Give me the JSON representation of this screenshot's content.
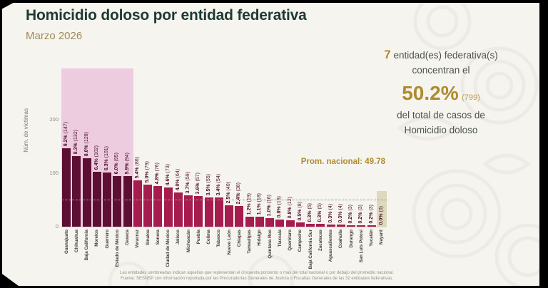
{
  "header": {
    "title": "Homicidio doloso por entidad federativa",
    "subtitle": "Marzo 2026"
  },
  "summary": {
    "count": "7",
    "entities_text": "entidad(es) federativa(s)",
    "concentrate_text": "concentran el",
    "percent": "50.2%",
    "percent_cases": "(799)",
    "total_text_line1": "del total de casos de",
    "total_text_line2": "Homicidio doloso"
  },
  "national_average": {
    "label": "Prom. nacional: 49.78",
    "value": 49.78
  },
  "chart_data": {
    "type": "bar",
    "title": "Homicidio doloso por entidad federativa",
    "xlabel": "",
    "ylabel": "Núm. de víctimas",
    "yticks": [
      0,
      100,
      200
    ],
    "ylim": [
      0,
      296
    ],
    "grid": false,
    "legend": false,
    "national_average": 49.78,
    "top_highlight_count": 7,
    "zero_highlight_state": "Nayarit",
    "bars": [
      {
        "state": "Guanajuato",
        "victims": 147,
        "pct": "9.2%"
      },
      {
        "state": "Chihuahua",
        "victims": 132,
        "pct": "8.3%"
      },
      {
        "state": "Baja California",
        "victims": 128,
        "pct": "8.0%"
      },
      {
        "state": "Morelos",
        "victims": 102,
        "pct": "6.4%"
      },
      {
        "state": "Guerrero",
        "victims": 101,
        "pct": "6.3%"
      },
      {
        "state": "Estado de México",
        "victims": 95,
        "pct": "6.0%"
      },
      {
        "state": "Oaxaca",
        "victims": 94,
        "pct": "5.9%"
      },
      {
        "state": "Veracruz",
        "victims": 86,
        "pct": "5.4%"
      },
      {
        "state": "Sinaloa",
        "victims": 79,
        "pct": "5.0%"
      },
      {
        "state": "Sonora",
        "victims": 76,
        "pct": "4.8%"
      },
      {
        "state": "Ciudad de México",
        "victims": 73,
        "pct": "4.6%"
      },
      {
        "state": "Jalisco",
        "victims": 64,
        "pct": "4.0%"
      },
      {
        "state": "Michoacán",
        "victims": 59,
        "pct": "3.7%"
      },
      {
        "state": "Puebla",
        "victims": 57,
        "pct": "3.6%"
      },
      {
        "state": "Colima",
        "victims": 55,
        "pct": "3.5%"
      },
      {
        "state": "Tabasco",
        "victims": 54,
        "pct": "3.4%"
      },
      {
        "state": "Nuevo León",
        "victims": 40,
        "pct": "2.5%"
      },
      {
        "state": "Chiapas",
        "victims": 38,
        "pct": "2.4%"
      },
      {
        "state": "Tamaulipas",
        "victims": 19,
        "pct": "1.2%"
      },
      {
        "state": "Hidalgo",
        "victims": 18,
        "pct": "1.1%"
      },
      {
        "state": "Quintana Roo",
        "victims": 16,
        "pct": "1.0%"
      },
      {
        "state": "Tlaxcala",
        "victims": 13,
        "pct": "0.8%"
      },
      {
        "state": "Querétaro",
        "victims": 12,
        "pct": "0.8%"
      },
      {
        "state": "Campeche",
        "victims": 8,
        "pct": "0.5%"
      },
      {
        "state": "Baja California Sur",
        "victims": 5,
        "pct": "0.3%"
      },
      {
        "state": "Zacatecas",
        "victims": 5,
        "pct": "0.3%"
      },
      {
        "state": "Aguascalientes",
        "victims": 4,
        "pct": "0.3%"
      },
      {
        "state": "Coahuila",
        "victims": 4,
        "pct": "0.3%"
      },
      {
        "state": "Durango",
        "victims": 3,
        "pct": "0.2%"
      },
      {
        "state": "San Luis Potosí",
        "victims": 3,
        "pct": "0.2%"
      },
      {
        "state": "Yucatán",
        "victims": 3,
        "pct": "0.2%"
      },
      {
        "state": "Nayarit",
        "victims": 0,
        "pct": "0.0%"
      }
    ]
  },
  "footer": {
    "line1": "Las entidades sombreadas indican aquellas que representan el cincuenta porciento o más del total nacional o por debajo del promedio nacional.",
    "line2": "Fuente: SESNSP con información reportada por las Procuradurías Generales de Justicia o Fiscalías Generales de las 32 entidades federativas."
  },
  "colors": {
    "bar_dark": "#5c0f33",
    "bar_light": "#a61c4e",
    "top_band": "#eeccdf",
    "zero_band": "#dcd9bd",
    "accent_gold": "#ad8c2f",
    "title": "#1d3a33",
    "subtitle": "#a08a58",
    "background": "#f6f4ef"
  }
}
